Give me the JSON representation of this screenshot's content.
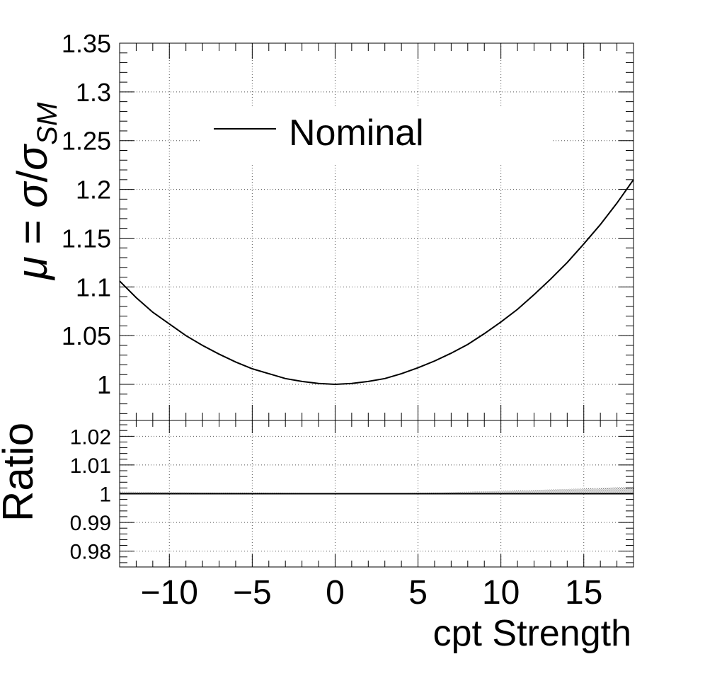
{
  "chart_data": [
    {
      "panel": "main",
      "type": "line",
      "ylabel_parts": {
        "mu": "μ",
        "eq": " = ",
        "sigma": "σ",
        "slash": "/",
        "sigma2": "σ",
        "sub": "SM"
      },
      "xlim": [
        -13,
        18
      ],
      "ylim": [
        0.963,
        1.35
      ],
      "yticks": [
        1,
        1.05,
        1.1,
        1.15,
        1.2,
        1.25,
        1.3,
        1.35
      ],
      "ytick_labels": [
        "1",
        "1.05",
        "1.1",
        "1.15",
        "1.2",
        "1.25",
        "1.3",
        "1.35"
      ],
      "xticks": [
        -10,
        -5,
        0,
        5,
        10,
        15
      ],
      "grid": true,
      "legend": {
        "placement": "top-center",
        "entries": [
          "Nominal"
        ]
      },
      "series": [
        {
          "name": "Nominal",
          "color": "#000000",
          "x": [
            -13,
            -12,
            -11,
            -10,
            -9,
            -8,
            -7,
            -6,
            -5,
            -4,
            -3,
            -2,
            -1,
            0,
            1,
            2,
            3,
            4,
            5,
            6,
            7,
            8,
            9,
            10,
            11,
            12,
            13,
            14,
            15,
            16,
            17,
            18
          ],
          "y": [
            1.106,
            1.089,
            1.074,
            1.062,
            1.05,
            1.04,
            1.031,
            1.023,
            1.016,
            1.011,
            1.006,
            1.003,
            1.001,
            1.0,
            1.001,
            1.003,
            1.006,
            1.011,
            1.017,
            1.024,
            1.032,
            1.041,
            1.052,
            1.064,
            1.077,
            1.092,
            1.108,
            1.125,
            1.144,
            1.164,
            1.186,
            1.21
          ]
        }
      ]
    },
    {
      "panel": "ratio",
      "type": "line",
      "ylabel": "Ratio",
      "xlabel": "cpt Strength",
      "xlim": [
        -13,
        18
      ],
      "ylim": [
        0.9745,
        1.0255
      ],
      "yticks": [
        0.98,
        0.99,
        1,
        1.01,
        1.02
      ],
      "ytick_labels": [
        "0.98",
        "0.99",
        "1",
        "1.01",
        "1.02"
      ],
      "xticks": [
        -10,
        -5,
        0,
        5,
        10,
        15
      ],
      "xtick_labels": [
        "−10",
        "−5",
        "0",
        "5",
        "10",
        "15"
      ],
      "grid": true,
      "series": [
        {
          "color": "#000000",
          "x": [
            -13,
            18
          ],
          "y": [
            1.0,
            1.0
          ]
        }
      ],
      "band": {
        "color": "#999999",
        "x": [
          -13,
          -8,
          -3,
          2,
          5,
          8,
          11,
          14,
          16,
          18
        ],
        "upper": [
          1.0007,
          1.0005,
          1.0003,
          1.0001,
          1.0003,
          1.0007,
          1.0011,
          1.0016,
          1.002,
          1.0024
        ]
      }
    }
  ]
}
